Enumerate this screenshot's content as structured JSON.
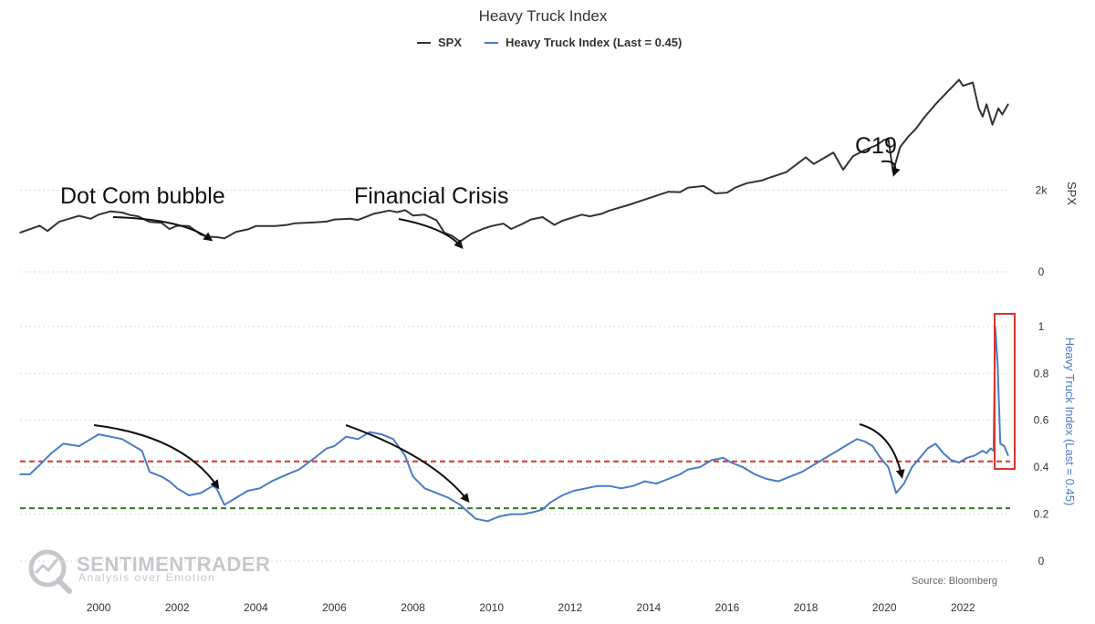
{
  "chart_data": {
    "type": "line",
    "title": "Heavy Truck Index",
    "source": "Source: Bloomberg",
    "x_range": [
      1998.0,
      2023.2
    ],
    "x_ticks": [
      2000,
      2002,
      2004,
      2006,
      2008,
      2010,
      2012,
      2014,
      2016,
      2018,
      2020,
      2022
    ],
    "legend": [
      {
        "name": "SPX",
        "color": "#333333"
      },
      {
        "name": "Heavy Truck Index (Last = 0.45)",
        "color": "#4a7cc7"
      }
    ],
    "panels": [
      {
        "ylabel": "SPX",
        "ylim": [
          0,
          5200
        ],
        "y_ticks": [
          {
            "v": 0,
            "label": "0"
          },
          {
            "v": 2000,
            "label": "2k"
          }
        ],
        "series": [
          {
            "name": "SPX",
            "color": "#333333",
            "points": [
              [
                1998.0,
                960
              ],
              [
                1998.5,
                1130
              ],
              [
                1998.7,
                1000
              ],
              [
                1999.0,
                1230
              ],
              [
                1999.5,
                1370
              ],
              [
                1999.8,
                1300
              ],
              [
                2000.0,
                1400
              ],
              [
                2000.3,
                1480
              ],
              [
                2000.6,
                1450
              ],
              [
                2000.8,
                1390
              ],
              [
                2001.0,
                1360
              ],
              [
                2001.3,
                1220
              ],
              [
                2001.6,
                1200
              ],
              [
                2001.8,
                1050
              ],
              [
                2002.0,
                1130
              ],
              [
                2002.3,
                1120
              ],
              [
                2002.6,
                910
              ],
              [
                2002.8,
                860
              ],
              [
                2003.0,
                850
              ],
              [
                2003.2,
                820
              ],
              [
                2003.5,
                980
              ],
              [
                2003.8,
                1040
              ],
              [
                2004.0,
                1120
              ],
              [
                2004.5,
                1120
              ],
              [
                2004.8,
                1150
              ],
              [
                2005.0,
                1190
              ],
              [
                2005.5,
                1210
              ],
              [
                2005.8,
                1230
              ],
              [
                2006.0,
                1280
              ],
              [
                2006.4,
                1300
              ],
              [
                2006.6,
                1270
              ],
              [
                2007.0,
                1420
              ],
              [
                2007.4,
                1500
              ],
              [
                2007.6,
                1460
              ],
              [
                2007.8,
                1510
              ],
              [
                2008.0,
                1380
              ],
              [
                2008.3,
                1400
              ],
              [
                2008.6,
                1260
              ],
              [
                2008.8,
                960
              ],
              [
                2009.0,
                880
              ],
              [
                2009.2,
                740
              ],
              [
                2009.5,
                940
              ],
              [
                2009.8,
                1060
              ],
              [
                2010.0,
                1120
              ],
              [
                2010.3,
                1180
              ],
              [
                2010.5,
                1050
              ],
              [
                2010.8,
                1180
              ],
              [
                2011.0,
                1280
              ],
              [
                2011.3,
                1340
              ],
              [
                2011.6,
                1150
              ],
              [
                2011.8,
                1250
              ],
              [
                2012.0,
                1310
              ],
              [
                2012.3,
                1400
              ],
              [
                2012.5,
                1360
              ],
              [
                2012.8,
                1420
              ],
              [
                2013.0,
                1500
              ],
              [
                2013.5,
                1640
              ],
              [
                2014.0,
                1800
              ],
              [
                2014.5,
                1960
              ],
              [
                2014.8,
                1950
              ],
              [
                2015.0,
                2060
              ],
              [
                2015.4,
                2100
              ],
              [
                2015.7,
                1920
              ],
              [
                2016.0,
                1940
              ],
              [
                2016.2,
                2060
              ],
              [
                2016.5,
                2170
              ],
              [
                2016.9,
                2240
              ],
              [
                2017.0,
                2280
              ],
              [
                2017.5,
                2440
              ],
              [
                2018.0,
                2800
              ],
              [
                2018.2,
                2640
              ],
              [
                2018.7,
                2920
              ],
              [
                2018.95,
                2500
              ],
              [
                2019.2,
                2830
              ],
              [
                2019.5,
                2980
              ],
              [
                2019.8,
                3100
              ],
              [
                2020.0,
                3230
              ],
              [
                2020.1,
                3260
              ],
              [
                2020.22,
                2450
              ],
              [
                2020.4,
                3050
              ],
              [
                2020.6,
                3300
              ],
              [
                2020.8,
                3500
              ],
              [
                2021.0,
                3760
              ],
              [
                2021.3,
                4100
              ],
              [
                2021.6,
                4400
              ],
              [
                2021.9,
                4700
              ],
              [
                2022.0,
                4550
              ],
              [
                2022.25,
                4630
              ],
              [
                2022.4,
                4000
              ],
              [
                2022.5,
                3800
              ],
              [
                2022.6,
                4100
              ],
              [
                2022.75,
                3600
              ],
              [
                2022.9,
                4000
              ],
              [
                2023.0,
                3850
              ],
              [
                2023.15,
                4100
              ]
            ]
          }
        ],
        "annotations": [
          "Dot Com bubble",
          "Financial Crisis",
          "C19"
        ]
      },
      {
        "ylabel": "Heavy Truck Index (Last = 0.45)",
        "ylim": [
          0,
          1.05
        ],
        "y_ticks": [
          {
            "v": 0,
            "label": "0"
          },
          {
            "v": 0.2,
            "label": "0.2"
          },
          {
            "v": 0.4,
            "label": "0.4"
          },
          {
            "v": 0.6,
            "label": "0.6"
          },
          {
            "v": 0.8,
            "label": "0.8"
          },
          {
            "v": 1,
            "label": "1"
          }
        ],
        "reference_lines": [
          {
            "value": 0.425,
            "color": "#d9342b",
            "style": "dashed"
          },
          {
            "value": 0.225,
            "color": "#2e7d1e",
            "style": "dashed"
          }
        ],
        "series": [
          {
            "name": "Heavy Truck Index (Last = 0.45)",
            "color": "#4a7cc7",
            "points": [
              [
                1998.0,
                0.37
              ],
              [
                1998.25,
                0.37
              ],
              [
                1998.5,
                0.41
              ],
              [
                1998.8,
                0.46
              ],
              [
                1999.1,
                0.5
              ],
              [
                1999.5,
                0.49
              ],
              [
                1999.8,
                0.52
              ],
              [
                2000.0,
                0.54
              ],
              [
                2000.3,
                0.53
              ],
              [
                2000.6,
                0.52
              ],
              [
                2000.9,
                0.49
              ],
              [
                2001.1,
                0.47
              ],
              [
                2001.3,
                0.38
              ],
              [
                2001.6,
                0.36
              ],
              [
                2001.8,
                0.34
              ],
              [
                2002.0,
                0.31
              ],
              [
                2002.3,
                0.28
              ],
              [
                2002.6,
                0.29
              ],
              [
                2002.9,
                0.32
              ],
              [
                2003.0,
                0.31
              ],
              [
                2003.2,
                0.24
              ],
              [
                2003.5,
                0.27
              ],
              [
                2003.8,
                0.3
              ],
              [
                2004.1,
                0.31
              ],
              [
                2004.4,
                0.34
              ],
              [
                2004.8,
                0.37
              ],
              [
                2005.1,
                0.39
              ],
              [
                2005.5,
                0.44
              ],
              [
                2005.8,
                0.48
              ],
              [
                2006.0,
                0.49
              ],
              [
                2006.3,
                0.53
              ],
              [
                2006.6,
                0.52
              ],
              [
                2006.9,
                0.55
              ],
              [
                2007.2,
                0.54
              ],
              [
                2007.5,
                0.52
              ],
              [
                2007.8,
                0.45
              ],
              [
                2008.0,
                0.36
              ],
              [
                2008.3,
                0.31
              ],
              [
                2008.6,
                0.29
              ],
              [
                2008.9,
                0.27
              ],
              [
                2009.2,
                0.24
              ],
              [
                2009.4,
                0.21
              ],
              [
                2009.6,
                0.18
              ],
              [
                2009.9,
                0.17
              ],
              [
                2010.2,
                0.19
              ],
              [
                2010.5,
                0.2
              ],
              [
                2010.8,
                0.2
              ],
              [
                2011.1,
                0.21
              ],
              [
                2011.3,
                0.22
              ],
              [
                2011.5,
                0.25
              ],
              [
                2011.8,
                0.28
              ],
              [
                2012.1,
                0.3
              ],
              [
                2012.4,
                0.31
              ],
              [
                2012.7,
                0.32
              ],
              [
                2013.0,
                0.32
              ],
              [
                2013.3,
                0.31
              ],
              [
                2013.6,
                0.32
              ],
              [
                2013.9,
                0.34
              ],
              [
                2014.2,
                0.33
              ],
              [
                2014.5,
                0.35
              ],
              [
                2014.8,
                0.37
              ],
              [
                2015.0,
                0.39
              ],
              [
                2015.3,
                0.4
              ],
              [
                2015.6,
                0.43
              ],
              [
                2015.9,
                0.44
              ],
              [
                2016.1,
                0.42
              ],
              [
                2016.4,
                0.4
              ],
              [
                2016.7,
                0.37
              ],
              [
                2017.0,
                0.35
              ],
              [
                2017.3,
                0.34
              ],
              [
                2017.6,
                0.36
              ],
              [
                2017.9,
                0.38
              ],
              [
                2018.2,
                0.41
              ],
              [
                2018.5,
                0.44
              ],
              [
                2018.8,
                0.47
              ],
              [
                2019.1,
                0.5
              ],
              [
                2019.3,
                0.52
              ],
              [
                2019.5,
                0.51
              ],
              [
                2019.7,
                0.49
              ],
              [
                2019.9,
                0.44
              ],
              [
                2020.1,
                0.4
              ],
              [
                2020.3,
                0.29
              ],
              [
                2020.5,
                0.33
              ],
              [
                2020.7,
                0.4
              ],
              [
                2020.9,
                0.44
              ],
              [
                2021.1,
                0.48
              ],
              [
                2021.3,
                0.5
              ],
              [
                2021.5,
                0.46
              ],
              [
                2021.7,
                0.43
              ],
              [
                2021.9,
                0.42
              ],
              [
                2022.1,
                0.44
              ],
              [
                2022.3,
                0.45
              ],
              [
                2022.5,
                0.47
              ],
              [
                2022.6,
                0.46
              ],
              [
                2022.7,
                0.48
              ],
              [
                2022.78,
                0.47
              ],
              [
                2022.82,
                1.0
              ],
              [
                2022.88,
                0.85
              ],
              [
                2022.95,
                0.5
              ],
              [
                2023.05,
                0.49
              ],
              [
                2023.15,
                0.45
              ]
            ]
          }
        ]
      }
    ]
  },
  "watermark": {
    "title": "SENTIMENTRADER",
    "subtitle": "Analysis over Emotion"
  }
}
